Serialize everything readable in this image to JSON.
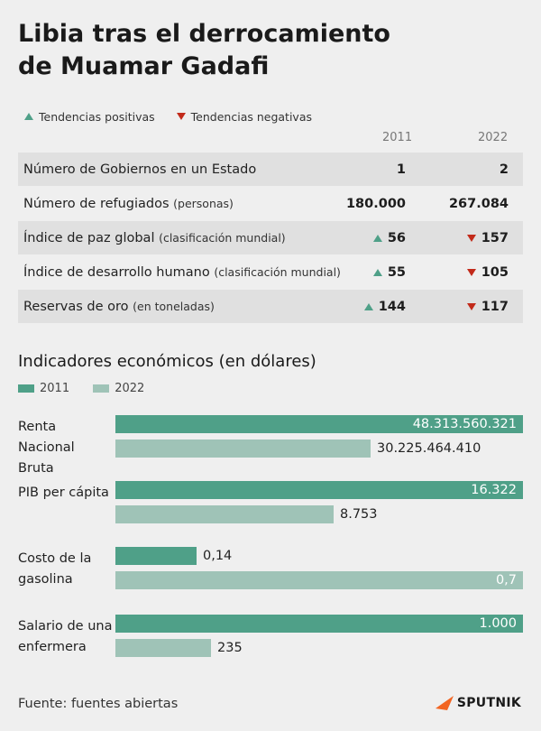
{
  "title": {
    "line1": "Libia tras el derrocamiento",
    "line2": "de Muamar Gadafi"
  },
  "legend": {
    "positive": "Tendencias positivas",
    "negative": "Tendencias negativas"
  },
  "table": {
    "years": [
      "2011",
      "2022"
    ],
    "rows": [
      {
        "label": "Número de Gobiernos en un Estado",
        "sub": "",
        "v2011": "1",
        "v2022": "2",
        "t2011": "",
        "t2022": ""
      },
      {
        "label": "Número de refugiados",
        "sub": "(personas)",
        "v2011": "180.000",
        "v2022": "267.084",
        "t2011": "",
        "t2022": ""
      },
      {
        "label": "Índice de paz global",
        "sub": "(clasificación mundial)",
        "v2011": "56",
        "v2022": "157",
        "t2011": "up",
        "t2022": "down"
      },
      {
        "label": "Índice de desarrollo humano",
        "sub": "(clasificación mundial)",
        "v2011": "55",
        "v2022": "105",
        "t2011": "up",
        "t2022": "down"
      },
      {
        "label": "Reservas de oro",
        "sub": "(en toneladas)",
        "v2011": "144",
        "v2022": "117",
        "t2011": "up",
        "t2022": "down"
      }
    ]
  },
  "economic": {
    "title": "Indicadores económicos (en dólares)",
    "legend": [
      "2011",
      "2022"
    ],
    "groups": [
      {
        "label": "Renta Nacional Bruta",
        "v2011": "48.313.560.321",
        "v2022": "30.225.464.410",
        "f2011": 1.0,
        "f2022": 0.626
      },
      {
        "label": "PIB per cápita",
        "v2011": "16.322",
        "v2022": "8.753",
        "f2011": 1.0,
        "f2022": 0.536
      },
      {
        "label": "Costo de la gasolina",
        "v2011": "0,14",
        "v2022": "0,7",
        "f2011": 0.2,
        "f2022": 1.0
      },
      {
        "label": "Salario de una enfermera",
        "v2011": "1.000",
        "v2022": "235",
        "f2011": 1.0,
        "f2022": 0.235
      }
    ]
  },
  "source": "Fuente: fuentes abiertas",
  "logo": "SPUTNIK"
}
